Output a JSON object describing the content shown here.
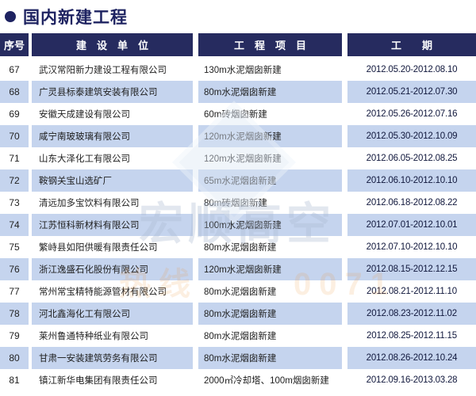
{
  "page": {
    "title": "国内新建工程"
  },
  "colors": {
    "navy": "#262b5f",
    "title_navy": "#1e2361",
    "row_blue": "#c5d4ee",
    "header_text": "#ffffff",
    "body_text": "#1f1f1f",
    "date_text": "#10173c",
    "watermark_gray": "#aebcd2",
    "watermark_orange": "#f0963c"
  },
  "watermark": {
    "brand": "宏顺高空",
    "hotline_label": "热线",
    "hotline_digits": "0071"
  },
  "table": {
    "headers": [
      {
        "label": "序号"
      },
      {
        "label": "建　设　单　位"
      },
      {
        "label": "工　程　项　目"
      },
      {
        "label": "工　　期"
      }
    ],
    "rows": [
      {
        "no": "67",
        "company": "武汉常阳新力建设工程有限公司",
        "project": "130m水泥烟囱新建",
        "period": "2012.05.20-2012.08.10"
      },
      {
        "no": "68",
        "company": "广灵县标泰建筑安装有限公司",
        "project": "80m水泥烟囱新建",
        "period": "2012.05.21-2012.07.30"
      },
      {
        "no": "69",
        "company": "安徽天成建设有限公司",
        "project": "60m砖烟囱新建",
        "period": "2012.05.26-2012.07.16"
      },
      {
        "no": "70",
        "company": "咸宁南玻玻璃有限公司",
        "project": "120m水泥烟囱新建",
        "period": "2012.05.30-2012.10.09"
      },
      {
        "no": "71",
        "company": "山东大泽化工有限公司",
        "project": "120m水泥烟囱新建",
        "period": "2012.06.05-2012.08.25"
      },
      {
        "no": "72",
        "company": "鞍钢关宝山选矿厂",
        "project": "65m水泥烟囱新建",
        "period": "2012.06.10-2012.10.10"
      },
      {
        "no": "73",
        "company": "清远加多宝饮料有限公司",
        "project": "80m砖烟囱新建",
        "period": "2012.06.18-2012.08.22"
      },
      {
        "no": "74",
        "company": "江苏恒科新材料有限公司",
        "project": "100m水泥烟囱新建",
        "period": "2012.07.01-2012.10.01"
      },
      {
        "no": "75",
        "company": "繁峙县如阳供暖有限责任公司",
        "project": "80m水泥烟囱新建",
        "period": "2012.07.10-2012.10.10"
      },
      {
        "no": "76",
        "company": "浙江逸盛石化股份有限公司",
        "project": "120m水泥烟囱新建",
        "period": "2012.08.15-2012.12.15"
      },
      {
        "no": "77",
        "company": "常州常宝精特能源管材有限公司",
        "project": "80m水泥烟囱新建",
        "period": "2012.08.21-2012.11.10"
      },
      {
        "no": "78",
        "company": "河北鑫海化工有限公司",
        "project": "80m水泥烟囱新建",
        "period": "2012.08.23-2012.11.02"
      },
      {
        "no": "79",
        "company": "莱州鲁通特种纸业有限公司",
        "project": "80m水泥烟囱新建",
        "period": "2012.08.25-2012.11.15"
      },
      {
        "no": "80",
        "company": "甘肃一安装建筑劳务有限公司",
        "project": "80m水泥烟囱新建",
        "period": "2012.08.26-2012.10.24"
      },
      {
        "no": "81",
        "company": "镇江新华电集团有限责任公司",
        "project": "2000㎡冷却塔、100m烟囱新建",
        "period": "2012.09.16-2013.03.28"
      }
    ]
  }
}
